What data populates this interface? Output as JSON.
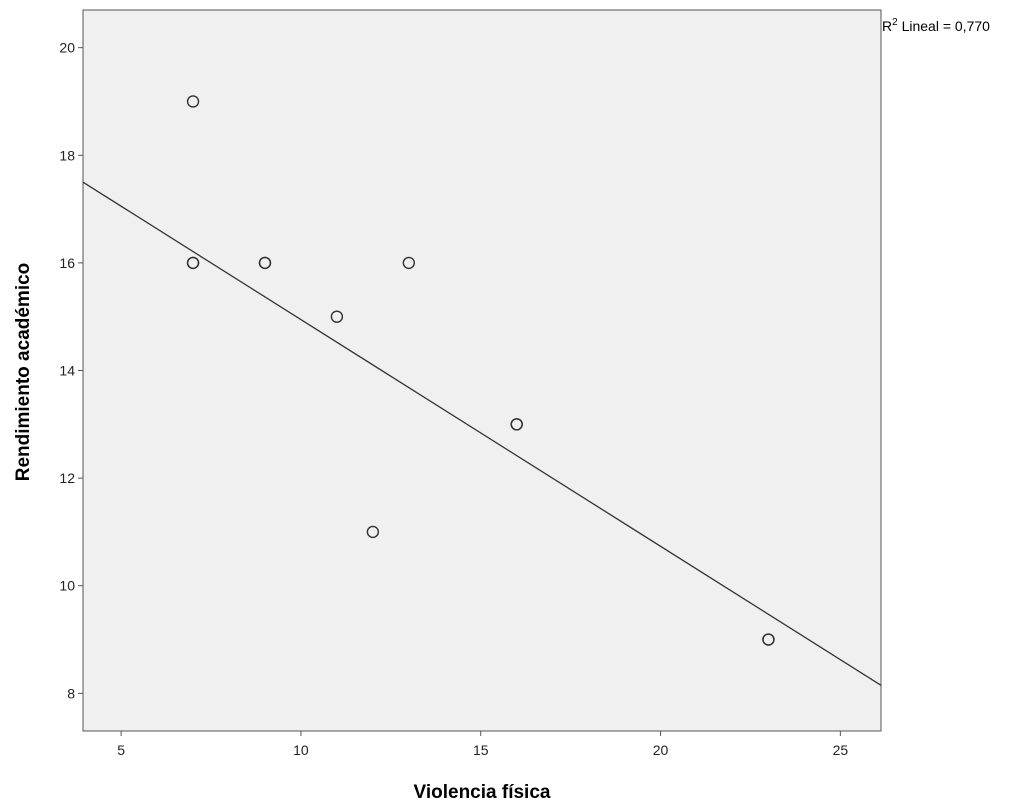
{
  "chart_data": {
    "type": "scatter",
    "title": "",
    "xlabel": "Violencia física",
    "ylabel": "Rendimiento académico",
    "xlim": [
      3.94,
      26.13
    ],
    "ylim": [
      7.3,
      20.7
    ],
    "xticks": [
      "5",
      "10",
      "15",
      "20",
      "25"
    ],
    "yticks": [
      "8",
      "10",
      "12",
      "14",
      "16",
      "18",
      "20"
    ],
    "points": [
      {
        "x": 7,
        "y": 19
      },
      {
        "x": 7,
        "y": 16
      },
      {
        "x": 7,
        "y": 16
      },
      {
        "x": 9,
        "y": 16
      },
      {
        "x": 9,
        "y": 16
      },
      {
        "x": 11,
        "y": 15
      },
      {
        "x": 12,
        "y": 11
      },
      {
        "x": 13,
        "y": 16
      },
      {
        "x": 16,
        "y": 13
      },
      {
        "x": 16,
        "y": 13
      },
      {
        "x": 23,
        "y": 9
      },
      {
        "x": 23,
        "y": 9
      }
    ],
    "fit_line": {
      "x0": 3.94,
      "y0": 17.5,
      "x1": 26.13,
      "y1": 8.15
    },
    "r2_label": {
      "prefix": "R",
      "sup": "2",
      "text": " Lineal = 0,770"
    },
    "grid": false,
    "colors": {
      "plot_background": "#f0f0f0",
      "marker_stroke": "#333333",
      "fit_line": "#333333"
    }
  }
}
